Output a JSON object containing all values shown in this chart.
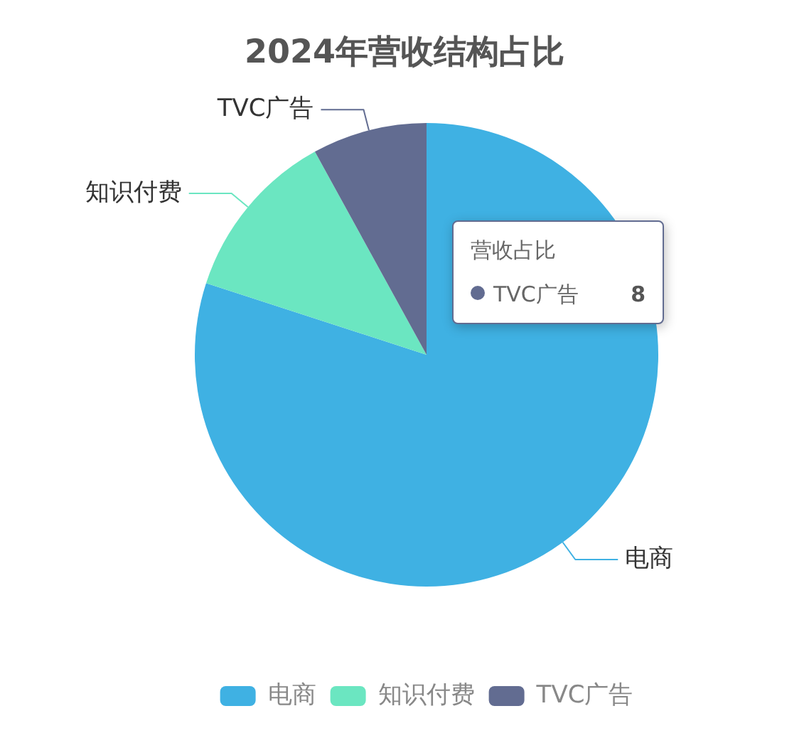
{
  "chart_data": {
    "type": "pie",
    "title": "2024年营收结构占比",
    "categories": [
      "电商",
      "知识付费",
      "TVC广告"
    ],
    "values": [
      80,
      12,
      8
    ],
    "colors": [
      "#3fb1e3",
      "#6be6c1",
      "#626c91"
    ],
    "value_labels": [
      null,
      null,
      "8"
    ],
    "annotations": [
      "营收占比"
    ],
    "legend": "bottom"
  }
}
